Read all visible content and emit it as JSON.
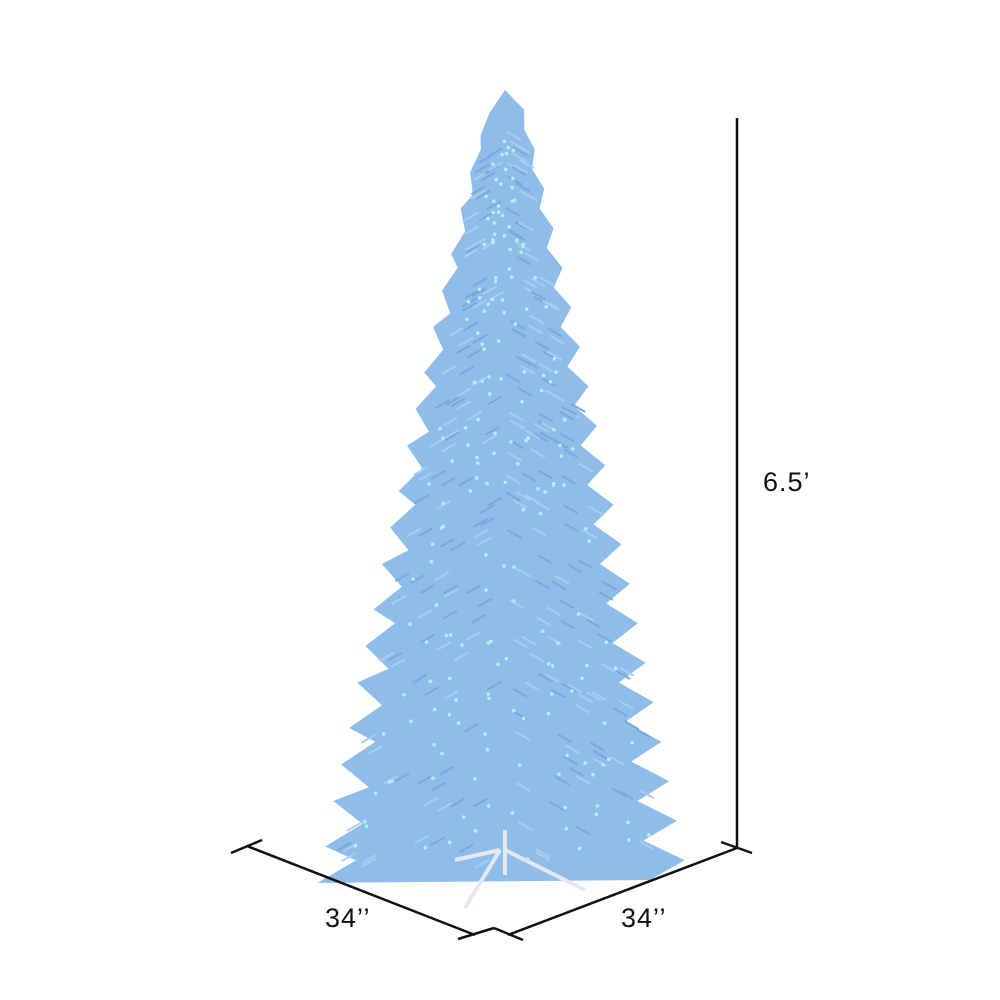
{
  "product": {
    "name": "",
    "color": "#8fbde9",
    "light_color": "#aef3ee"
  },
  "dimensions": {
    "height_label": "6.5’",
    "width_label": "34’’",
    "depth_label": "34’’"
  }
}
